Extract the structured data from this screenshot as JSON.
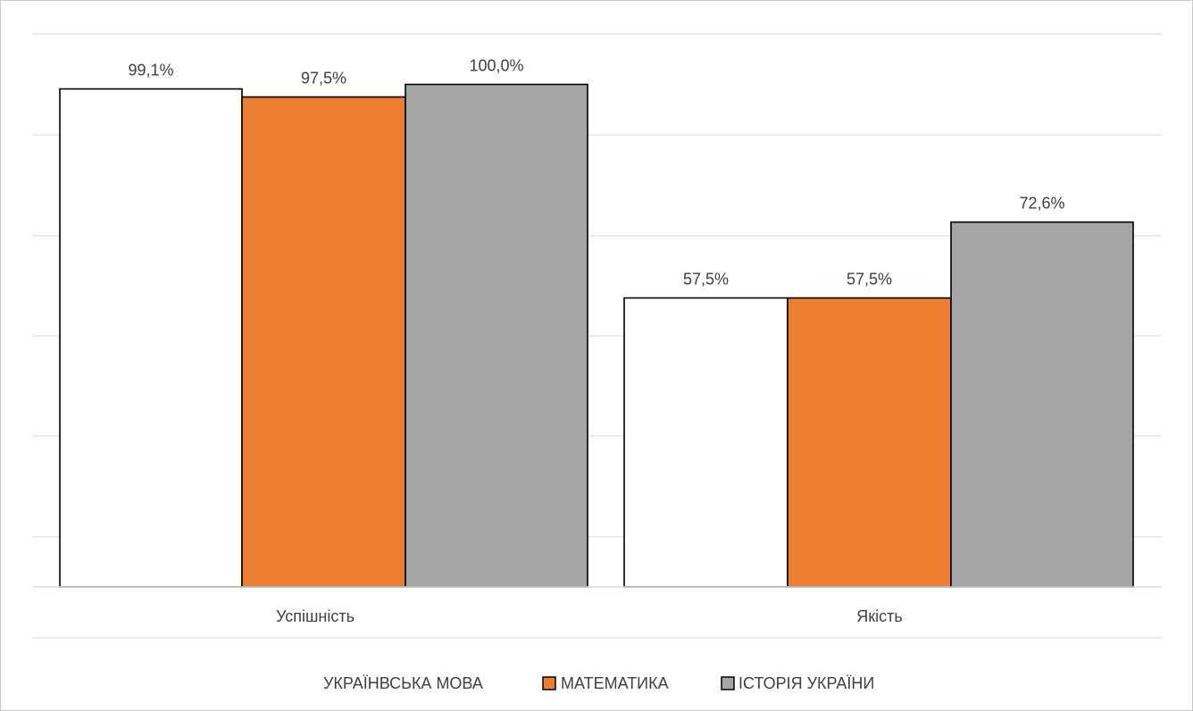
{
  "chart_data": {
    "type": "bar",
    "title": "",
    "xlabel": "",
    "ylabel": "",
    "categories": [
      "Успішність",
      "Якість"
    ],
    "series": [
      {
        "name": "УКРАЇНВСЬКА МОВА",
        "values": [
          99.1,
          57.5
        ],
        "value_labels": [
          "99,1%",
          "57,5%"
        ],
        "color": "#ffffff"
      },
      {
        "name": "МАТЕМАТИКА",
        "values": [
          97.5,
          57.5
        ],
        "value_labels": [
          "97,5%",
          "57,5%"
        ],
        "color": "#ed7d31"
      },
      {
        "name": "ІСТОРІЯ УКРАЇНИ",
        "values": [
          100.0,
          72.6
        ],
        "value_labels": [
          "100,0%",
          "72,6%"
        ],
        "color": "#a5a5a5"
      }
    ],
    "ylim": [
      0,
      100
    ],
    "grid": true,
    "legend_position": "bottom"
  }
}
